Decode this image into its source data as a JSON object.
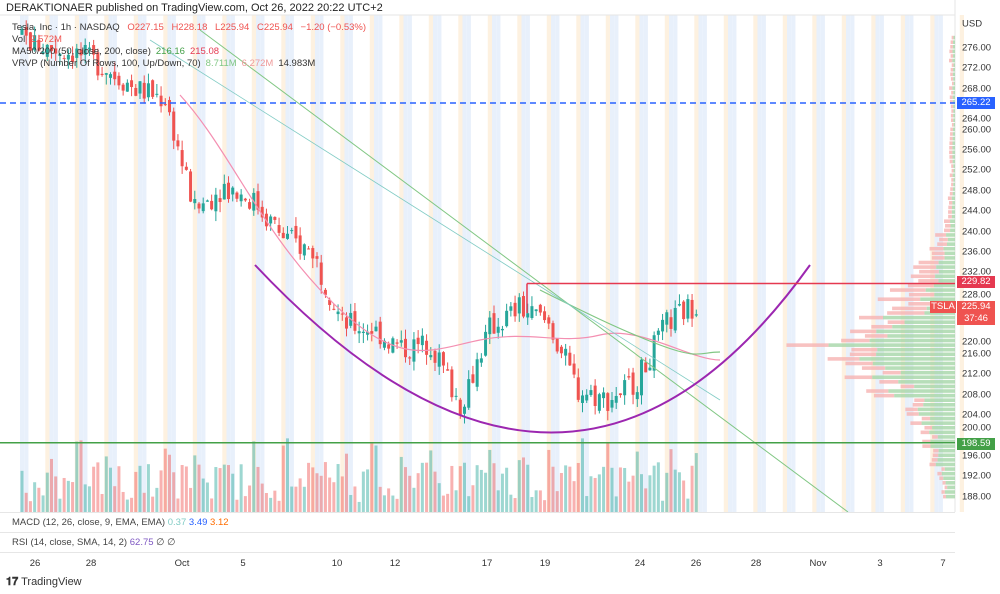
{
  "header": "DERAKTIONAER published on TradingView.com, Oct 26, 2022 20:22 UTC+2",
  "legend": {
    "symbol": "Tesla, Inc · 1h · NASDAQ",
    "open": "O227.15",
    "high": "H228.18",
    "low": "L225.94",
    "close": "C225.94",
    "change": "−1.20 (−0.53%)",
    "vol_label": "Vol",
    "vol": "2.572M",
    "ma_label": "MA50/200 (50, close, 200, close)",
    "ma50": "216.16",
    "ma200": "215.08",
    "vrvp_label": "VRVP (Number Of Rows, 100, Up/Down, 70)",
    "vrvp_up": "8.711M",
    "vrvp_down": "6.272M",
    "vrvp_total": "14.983M"
  },
  "macd": {
    "label": "MACD (12, 26, close, 9, EMA, EMA)",
    "hist": "0.37",
    "macd": "3.49",
    "signal": "3.12"
  },
  "rsi": {
    "label": "RSI (14, close, SMA, 14, 2)",
    "value": "62.75",
    "ph1": "∅",
    "ph2": "∅"
  },
  "footer": "TradingView",
  "colors": {
    "up": "#26a69a",
    "down": "#ef5350",
    "ma50": "#f48fb1",
    "ma200": "#81c784",
    "arc": "#9c27b0",
    "blue_line": "#2962ff",
    "green_line": "#43a047",
    "red_line": "#e53950"
  },
  "chart_data": {
    "type": "candlestick",
    "currency": "USD",
    "y_ticks": [
      "276.00",
      "272.00",
      "268.00",
      "264.00",
      "260.00",
      "256.00",
      "252.00",
      "248.00",
      "244.00",
      "240.00",
      "236.00",
      "232.00",
      "228.00",
      "220.00",
      "216.00",
      "212.00",
      "208.00",
      "204.00",
      "200.00",
      "196.00",
      "192.00",
      "188.00"
    ],
    "x_ticks": [
      "26",
      "28",
      "Oct",
      "5",
      "10",
      "12",
      "17",
      "19",
      "24",
      "26",
      "28",
      "Nov",
      "3",
      "7"
    ],
    "ylim": [
      186,
      280
    ],
    "approx_daily_close": [
      {
        "date": "Sep 26",
        "price": 276
      },
      {
        "date": "Sep 27",
        "price": 275
      },
      {
        "date": "Sep 28",
        "price": 272
      },
      {
        "date": "Sep 29",
        "price": 268
      },
      {
        "date": "Sep 30",
        "price": 266
      },
      {
        "date": "Oct 3",
        "price": 244
      },
      {
        "date": "Oct 4",
        "price": 249
      },
      {
        "date": "Oct 5",
        "price": 246
      },
      {
        "date": "Oct 6",
        "price": 239
      },
      {
        "date": "Oct 7",
        "price": 236
      },
      {
        "date": "Oct 10",
        "price": 222
      },
      {
        "date": "Oct 11",
        "price": 221
      },
      {
        "date": "Oct 12",
        "price": 217
      },
      {
        "date": "Oct 13",
        "price": 218
      },
      {
        "date": "Oct 14",
        "price": 206
      },
      {
        "date": "Oct 17",
        "price": 221
      },
      {
        "date": "Oct 18",
        "price": 225
      },
      {
        "date": "Oct 19",
        "price": 222
      },
      {
        "date": "Oct 20",
        "price": 209
      },
      {
        "date": "Oct 21",
        "price": 207
      },
      {
        "date": "Oct 24",
        "price": 211
      },
      {
        "date": "Oct 25",
        "price": 222
      },
      {
        "date": "Oct 26",
        "price": 225.94
      }
    ],
    "levels": [
      {
        "label": "265.22",
        "price": 265.22,
        "style": "dashed-blue"
      },
      {
        "label": "229.82",
        "price": 229.82,
        "style": "red"
      },
      {
        "label": "198.59",
        "price": 198.59,
        "style": "green"
      }
    ],
    "last_price": {
      "symbol": "TSLA",
      "price": "225.94",
      "countdown": "37:46"
    }
  }
}
